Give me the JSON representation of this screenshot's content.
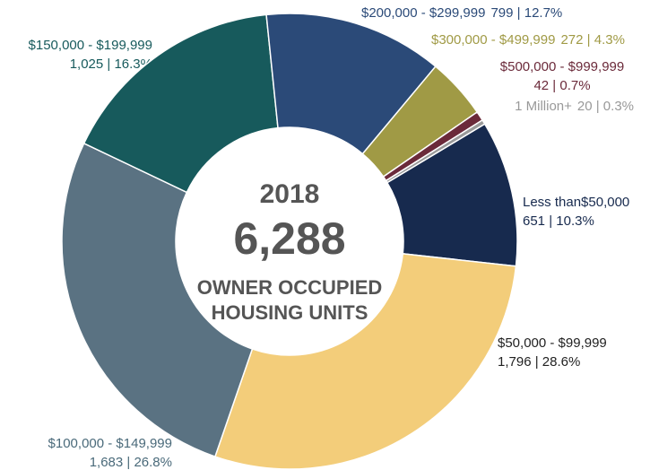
{
  "chart_data": {
    "type": "donut",
    "categories": [
      "Less than$50,000",
      "$50,000 - $99,999",
      "$100,000 - $149,999",
      "$150,000 - $199,999",
      "$200,000 - $299,999",
      "$300,000 - $499,999",
      "$500,000 - $999,999",
      "1 Million+"
    ],
    "values": [
      651,
      1796,
      1683,
      1025,
      799,
      272,
      42,
      20
    ],
    "value_labels": [
      "651 | 10.3%",
      "1,796 | 28.6%",
      "1,683 | 26.8%",
      "1,025 | 16.3%",
      "799 | 12.7%",
      "272 | 4.3%",
      "42 | 0.7%",
      "20 | 0.3%"
    ],
    "colors": [
      "#172a4e",
      "#f3cd7a",
      "#5a7282",
      "#175a5c",
      "#2b4a78",
      "#a09a45",
      "#6b2a3a",
      "#9a9a9a"
    ],
    "center": {
      "year": "2018",
      "total": "6,288",
      "lines": [
        "OWNER OCCUPIED",
        "HOUSING UNITS"
      ]
    }
  }
}
